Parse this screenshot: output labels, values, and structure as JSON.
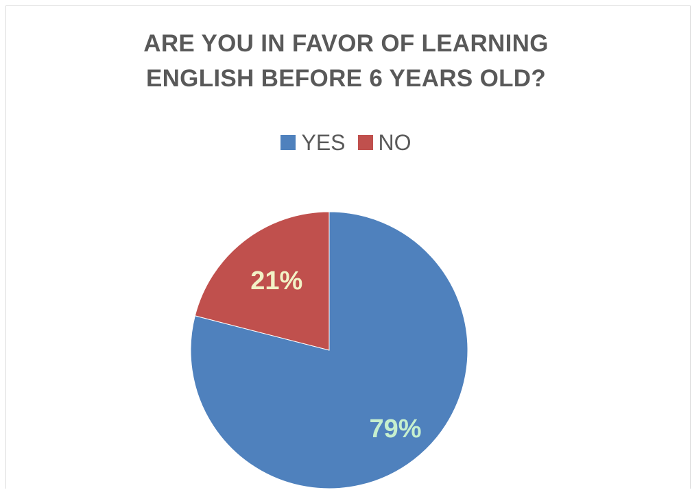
{
  "chart_data": {
    "type": "pie",
    "title_lines": [
      "ARE YOU IN FAVOR OF LEARNING",
      "ENGLISH BEFORE 6 YEARS OLD?"
    ],
    "legend_position": "top",
    "slices": [
      {
        "name": "YES",
        "value": 79,
        "label": "79%",
        "color": "#4f81bd",
        "label_color": "#c6efce"
      },
      {
        "name": "NO",
        "value": 21,
        "label": "21%",
        "color": "#c0504d",
        "label_color": "#f2f2c6"
      }
    ]
  }
}
